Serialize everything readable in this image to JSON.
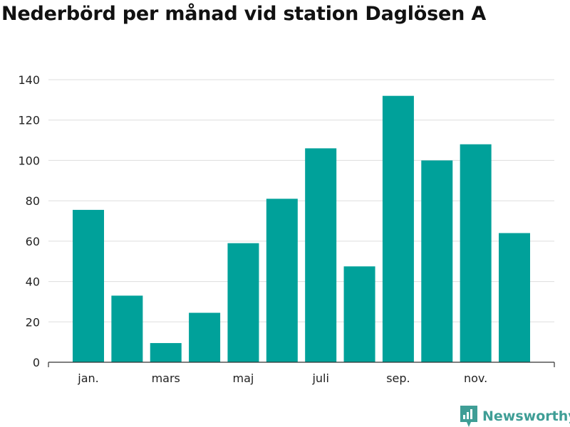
{
  "title": "Nederbörd per månad vid station Daglösen A",
  "brand": {
    "name": "Newsworthy",
    "icon": "newsworthy-logo-icon",
    "color": "#3f9e96"
  },
  "chart_data": {
    "type": "bar",
    "title": "Nederbörd per månad vid station Daglösen A",
    "xlabel": "",
    "ylabel": "",
    "ylim": [
      0,
      140
    ],
    "yticks": [
      0,
      20,
      40,
      60,
      80,
      100,
      120,
      140
    ],
    "x_tick_labels": [
      {
        "category_index": 0,
        "label": "jan."
      },
      {
        "category_index": 2,
        "label": "mars"
      },
      {
        "category_index": 4,
        "label": "maj"
      },
      {
        "category_index": 6,
        "label": "juli"
      },
      {
        "category_index": 8,
        "label": "sep."
      },
      {
        "category_index": 10,
        "label": "nov."
      }
    ],
    "values": [
      75.5,
      33,
      9.5,
      24.5,
      59,
      81,
      106,
      47.5,
      132,
      100,
      108,
      64
    ],
    "bar_color": "#00a19a",
    "grid": true
  }
}
